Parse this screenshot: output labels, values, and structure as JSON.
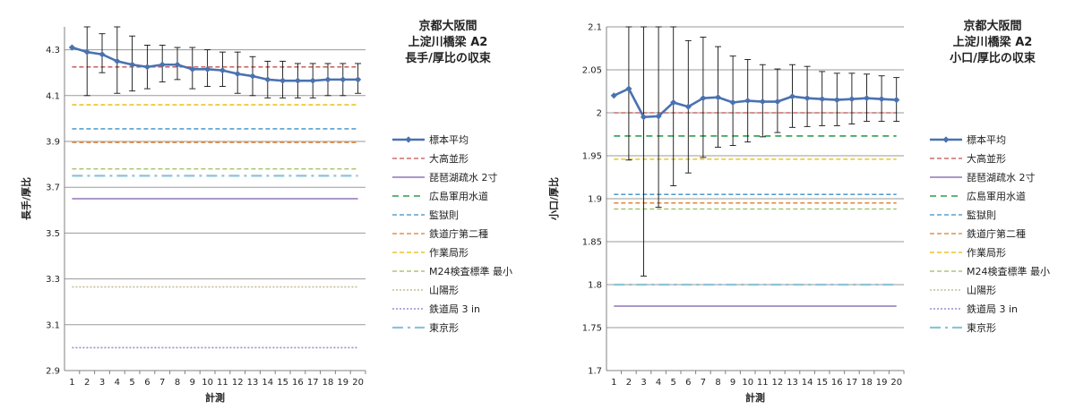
{
  "chart_data": [
    {
      "type": "line",
      "title_lines": [
        "京都大阪間",
        "上淀川橋梁 A2",
        "長手/厚比の収束"
      ],
      "xlabel": "計測",
      "ylabel": "長手/厚比",
      "x": [
        1,
        2,
        3,
        4,
        5,
        6,
        7,
        8,
        9,
        10,
        11,
        12,
        13,
        14,
        15,
        16,
        17,
        18,
        19,
        20
      ],
      "ylim": [
        2.9,
        4.4
      ],
      "yticks": [
        "2.9",
        "3.1",
        "3.3",
        "3.5",
        "3.7",
        "3.9",
        "4.1",
        "4.3"
      ],
      "grid": true,
      "legend_position": "right",
      "series": [
        {
          "name": "標本平均",
          "style": "marker-line",
          "color": "#4a72b0",
          "values": [
            4.31,
            4.29,
            4.28,
            4.25,
            4.235,
            4.225,
            4.235,
            4.235,
            4.215,
            4.215,
            4.21,
            4.195,
            4.185,
            4.17,
            4.165,
            4.165,
            4.165,
            4.17,
            4.17,
            4.17
          ],
          "err_low": [
            4.31,
            4.1,
            4.2,
            4.11,
            4.12,
            4.13,
            4.16,
            4.17,
            4.13,
            4.14,
            4.14,
            4.11,
            4.1,
            4.09,
            4.09,
            4.09,
            4.09,
            4.1,
            4.1,
            4.11
          ],
          "err_high": [
            4.31,
            4.4,
            4.37,
            4.4,
            4.36,
            4.32,
            4.32,
            4.31,
            4.31,
            4.3,
            4.29,
            4.29,
            4.27,
            4.25,
            4.25,
            4.24,
            4.24,
            4.24,
            4.24,
            4.24
          ]
        },
        {
          "name": "大高並形",
          "style": "dashed",
          "color": "#c0504d",
          "value": 4.225
        },
        {
          "name": "琵琶湖疏水 2寸",
          "style": "solid",
          "color": "#7b5aa6",
          "value": 3.65
        },
        {
          "name": "広島軍用水道",
          "style": "dashed-long",
          "color": "#2e9d4e",
          "value": null
        },
        {
          "name": "監獄則",
          "style": "dashed",
          "color": "#3b8ec2",
          "value": 3.955
        },
        {
          "name": "鉄道庁第二種",
          "style": "dashed",
          "color": "#e07b28",
          "value": 3.895
        },
        {
          "name": "作業局形",
          "style": "dashed",
          "color": "#e6b800",
          "value": 4.06
        },
        {
          "name": "M24検査標準 最小",
          "style": "dashed",
          "color": "#9bbb59",
          "value": 3.78
        },
        {
          "name": "山陽形",
          "style": "dotted",
          "color": "#c4bd97",
          "value": 3.265
        },
        {
          "name": "鉄道局 3 in",
          "style": "dotted",
          "color": "#9c8ccf",
          "value": 3.0
        },
        {
          "name": "東京形",
          "style": "dashdot",
          "color": "#8dc3d8",
          "value": 3.75
        }
      ]
    },
    {
      "type": "line",
      "title_lines": [
        "京都大阪間",
        "上淀川橋梁 A2",
        "小口/厚比の収束"
      ],
      "xlabel": "計測",
      "ylabel": "小口/厚比",
      "x": [
        1,
        2,
        3,
        4,
        5,
        6,
        7,
        8,
        9,
        10,
        11,
        12,
        13,
        14,
        15,
        16,
        17,
        18,
        19,
        20
      ],
      "ylim": [
        1.7,
        2.1
      ],
      "yticks": [
        "1.7",
        "1.75",
        "1.8",
        "1.85",
        "1.9",
        "1.95",
        "2",
        "2.05",
        "2.1"
      ],
      "grid": true,
      "legend_position": "right",
      "series": [
        {
          "name": "標本平均",
          "style": "marker-line",
          "color": "#4a72b0",
          "values": [
            2.02,
            2.028,
            1.995,
            1.996,
            2.012,
            2.007,
            2.017,
            2.018,
            2.012,
            2.014,
            2.013,
            2.013,
            2.019,
            2.017,
            2.016,
            2.015,
            2.016,
            2.017,
            2.016,
            2.015
          ],
          "err_low": [
            2.02,
            1.945,
            1.81,
            1.89,
            1.915,
            1.93,
            1.948,
            1.96,
            1.962,
            1.966,
            1.972,
            1.977,
            1.983,
            1.984,
            1.985,
            1.985,
            1.987,
            1.99,
            1.99,
            1.99
          ],
          "err_high": [
            2.02,
            2.1,
            2.1,
            2.1,
            2.1,
            2.084,
            2.088,
            2.077,
            2.066,
            2.062,
            2.056,
            2.051,
            2.056,
            2.054,
            2.048,
            2.046,
            2.046,
            2.045,
            2.043,
            2.041
          ]
        },
        {
          "name": "大高並形",
          "style": "dashed",
          "color": "#c0504d",
          "value": 2.0
        },
        {
          "name": "琵琶湖疏水 2寸",
          "style": "solid",
          "color": "#7b5aa6",
          "value": 1.775
        },
        {
          "name": "広島軍用水道",
          "style": "dashed-long",
          "color": "#2e9d4e",
          "value": 1.973
        },
        {
          "name": "監獄則",
          "style": "dashed",
          "color": "#3b8ec2",
          "value": 1.905
        },
        {
          "name": "鉄道庁第二種",
          "style": "dashed",
          "color": "#e07b28",
          "value": 1.895
        },
        {
          "name": "作業局形",
          "style": "dashed",
          "color": "#e6b800",
          "value": 1.946
        },
        {
          "name": "M24検査標準 最小",
          "style": "dashed",
          "color": "#9bbb59",
          "value": 1.888
        },
        {
          "name": "山陽形",
          "style": "dotted",
          "color": "#c4bd97",
          "value": null
        },
        {
          "name": "鉄道局 3 in",
          "style": "dotted",
          "color": "#9c8ccf",
          "value": null
        },
        {
          "name": "東京形",
          "style": "dashdot",
          "color": "#8dc3d8",
          "value": 1.8
        }
      ]
    }
  ]
}
